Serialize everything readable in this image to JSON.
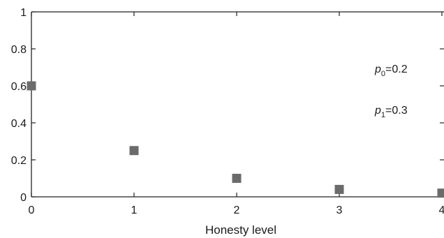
{
  "chart_data": {
    "type": "scatter",
    "title": "",
    "xlabel": "Honesty level",
    "ylabel": "",
    "xlim": [
      0,
      4
    ],
    "ylim": [
      0,
      1
    ],
    "x_ticks": [
      "0",
      "1",
      "2",
      "3",
      "4"
    ],
    "y_ticks": [
      "0",
      "0.2",
      "0.4",
      "0.6",
      "0.8",
      "1"
    ],
    "grid": false,
    "marker": "square",
    "marker_color": "#6b6b6b",
    "series": [
      {
        "x": [
          0,
          1,
          2,
          3,
          4
        ],
        "y": [
          0.6,
          0.25,
          0.1,
          0.04,
          0.02
        ]
      }
    ],
    "annotations": [
      {
        "var": "p",
        "sub": "0",
        "rest": "=0.2"
      },
      {
        "var": "p",
        "sub": "1",
        "rest": "=0.3"
      }
    ]
  }
}
